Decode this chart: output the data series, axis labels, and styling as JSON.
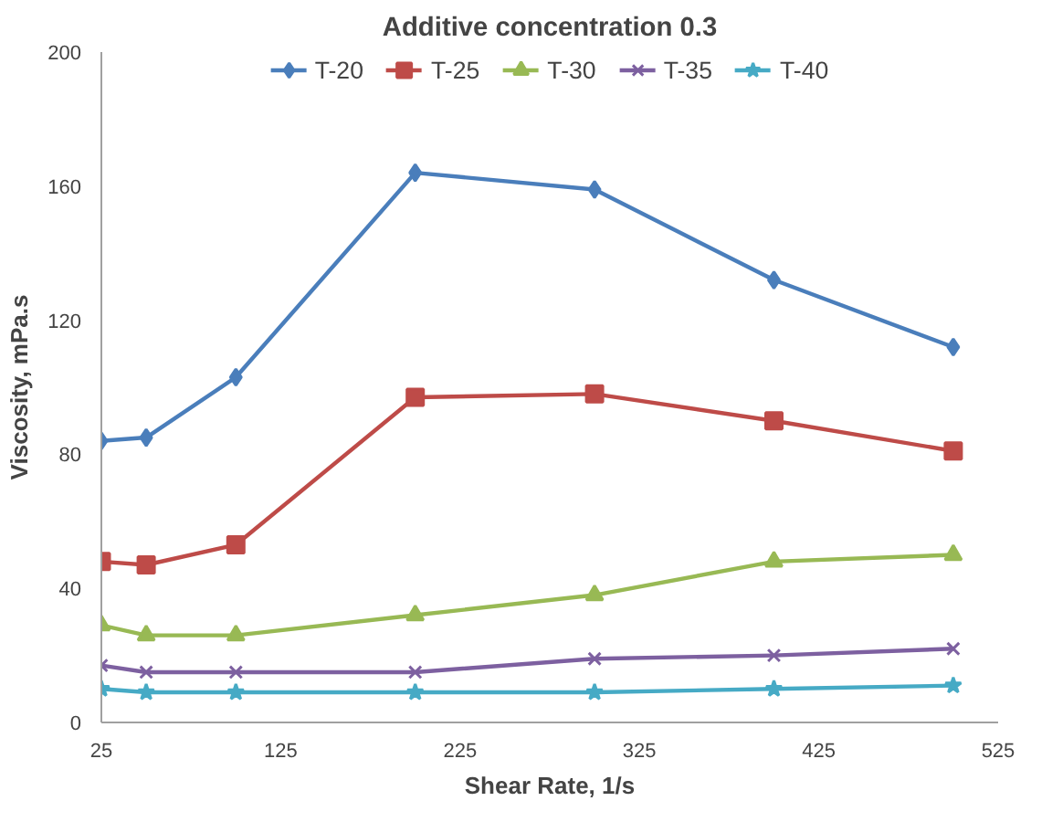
{
  "chart_data": {
    "type": "line",
    "title": "Additive concentration 0.3",
    "xlabel": "Shear Rate, 1/s",
    "ylabel": "Viscosity, mPa.s",
    "x": [
      25,
      50,
      100,
      200,
      300,
      400,
      500
    ],
    "xlim": [
      25,
      525
    ],
    "xticks": [
      25,
      125,
      225,
      325,
      425,
      525
    ],
    "ylim": [
      0,
      200
    ],
    "yticks": [
      0,
      40,
      80,
      120,
      160,
      200
    ],
    "grid": false,
    "legend": "top",
    "line_style": "solid",
    "series": [
      {
        "name": "T-20",
        "color": "#4a7ebb",
        "marker": "diamond",
        "values": [
          84,
          85,
          103,
          164,
          159,
          132,
          112
        ]
      },
      {
        "name": "T-25",
        "color": "#be4b48",
        "marker": "square",
        "values": [
          48,
          47,
          53,
          97,
          98,
          90,
          81
        ]
      },
      {
        "name": "T-30",
        "color": "#98b954",
        "marker": "triangle",
        "values": [
          29,
          26,
          26,
          32,
          38,
          48,
          50
        ]
      },
      {
        "name": "T-35",
        "color": "#7d60a0",
        "marker": "cross",
        "values": [
          17,
          15,
          15,
          15,
          19,
          20,
          22
        ]
      },
      {
        "name": "T-40",
        "color": "#46aac5",
        "marker": "star",
        "values": [
          10,
          9,
          9,
          9,
          9,
          10,
          11
        ]
      }
    ]
  }
}
